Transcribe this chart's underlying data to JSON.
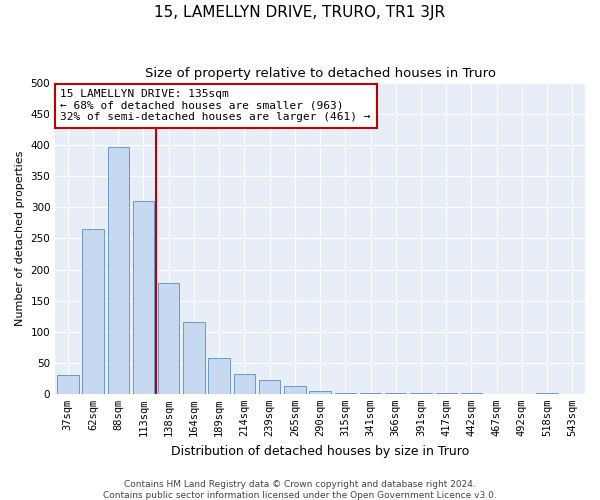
{
  "title": "15, LAMELLYN DRIVE, TRURO, TR1 3JR",
  "subtitle": "Size of property relative to detached houses in Truro",
  "xlabel": "Distribution of detached houses by size in Truro",
  "ylabel": "Number of detached properties",
  "categories": [
    "37sqm",
    "62sqm",
    "88sqm",
    "113sqm",
    "138sqm",
    "164sqm",
    "189sqm",
    "214sqm",
    "239sqm",
    "265sqm",
    "290sqm",
    "315sqm",
    "341sqm",
    "366sqm",
    "391sqm",
    "417sqm",
    "442sqm",
    "467sqm",
    "492sqm",
    "518sqm",
    "543sqm"
  ],
  "values": [
    30,
    265,
    397,
    310,
    178,
    115,
    58,
    32,
    22,
    12,
    5,
    2,
    1,
    1,
    1,
    1,
    1,
    0,
    0,
    1,
    0
  ],
  "bar_color": "#c6d9f0",
  "bar_edge_color": "#5b8ec4",
  "vline_x_index": 3.5,
  "vline_color": "#c00000",
  "annotation_text": "15 LAMELLYN DRIVE: 135sqm\n← 68% of detached houses are smaller (963)\n32% of semi-detached houses are larger (461) →",
  "annotation_box_color": "#ffffff",
  "annotation_box_edge": "#c00000",
  "ylim": [
    0,
    500
  ],
  "yticks": [
    0,
    50,
    100,
    150,
    200,
    250,
    300,
    350,
    400,
    450,
    500
  ],
  "background_color": "#e8eef8",
  "footer": "Contains HM Land Registry data © Crown copyright and database right 2024.\nContains public sector information licensed under the Open Government Licence v3.0.",
  "title_fontsize": 11,
  "subtitle_fontsize": 9.5,
  "xlabel_fontsize": 9,
  "ylabel_fontsize": 8,
  "tick_fontsize": 7.5,
  "annotation_fontsize": 8,
  "footer_fontsize": 6.5
}
